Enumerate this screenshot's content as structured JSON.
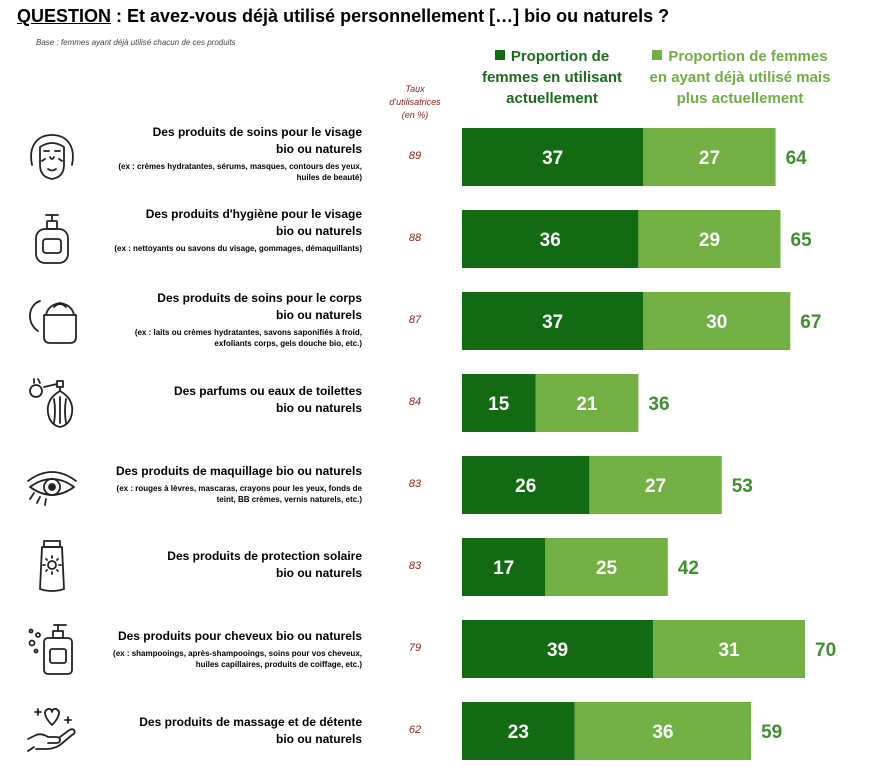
{
  "question": {
    "label": "QUESTION",
    "text": " : Et avez-vous déjà utilisé personnellement […] bio ou naturels ?"
  },
  "base_note": "Base : femmes ayant déjà utilisé chacun de ces produits",
  "rate_header": [
    "Taux",
    "d'utilisatrices",
    "(en %)"
  ],
  "legend": {
    "current": "Proportion de femmes en utilisant actuellement",
    "past": "Proportion de femmes en ayant déjà utilisé mais plus actuellement"
  },
  "colors": {
    "current": "#126a12",
    "past": "#72b043",
    "total_label": "#3f8f2f",
    "rate": "#8b1a1a"
  },
  "rows": [
    {
      "icon": "face-mask-icon",
      "title_lines": [
        "Des produits de soins pour le visage",
        "bio ou naturels"
      ],
      "detail_lines": [
        "(ex : crèmes hydratantes, sérums, masques,  contours des yeux,",
        "huiles de beauté)"
      ],
      "rate": "89"
    },
    {
      "icon": "soap-bottle-icon",
      "title_lines": [
        "Des produits d'hygiène pour le visage",
        "bio ou naturels"
      ],
      "detail_lines": [
        "(ex : nettoyants ou savons du visage, gommages, démaquillants)"
      ],
      "rate": "88"
    },
    {
      "icon": "cream-jar-icon",
      "title_lines": [
        "Des produits de soins pour le corps",
        "bio ou naturels"
      ],
      "detail_lines": [
        "(ex : laits ou crèmes hydratantes, savons saponifiés à froid,",
        "exfoliants corps, gels douche bio, etc.)"
      ],
      "rate": "87"
    },
    {
      "icon": "perfume-bottle-icon",
      "title_lines": [
        "Des parfums ou eaux de toilettes",
        "bio ou naturels"
      ],
      "detail_lines": [],
      "rate": "84"
    },
    {
      "icon": "eye-makeup-icon",
      "title_lines": [
        "Des produits de maquillage bio ou naturels"
      ],
      "detail_lines": [
        "(ex : rouges à lèvres, mascaras, crayons pour les yeux, fonds de",
        "teint, BB crèmes, vernis naturels, etc.)"
      ],
      "rate": "83"
    },
    {
      "icon": "sunscreen-tube-icon",
      "title_lines": [
        "Des produits de protection solaire",
        "bio ou naturels"
      ],
      "detail_lines": [],
      "rate": "83"
    },
    {
      "icon": "shampoo-bottle-icon",
      "title_lines": [
        "Des produits pour cheveux bio ou naturels"
      ],
      "detail_lines": [
        "(ex : shampooings, après-shampooings, soins pour vos cheveux,",
        "huiles capillaires, produits de coiffage, etc.)"
      ],
      "rate": "79"
    },
    {
      "icon": "massage-hand-icon",
      "title_lines": [
        "Des produits de massage et de détente",
        "bio ou naturels"
      ],
      "detail_lines": [],
      "rate": "62"
    }
  ],
  "chart_data": {
    "type": "bar",
    "orientation": "horizontal",
    "stacked": true,
    "categories": [
      "Des produits de soins pour le visage bio ou naturels",
      "Des produits d'hygiène pour le visage bio ou naturels",
      "Des produits de soins pour le corps bio ou naturels",
      "Des parfums ou eaux de toilettes bio ou naturels",
      "Des produits de maquillage bio ou naturels",
      "Des produits de protection solaire bio ou naturels",
      "Des produits pour cheveux bio ou naturels",
      "Des produits de massage et de détente bio ou naturels"
    ],
    "series": [
      {
        "name": "Proportion de femmes en utilisant actuellement",
        "values": [
          37,
          36,
          37,
          15,
          26,
          17,
          39,
          23
        ]
      },
      {
        "name": "Proportion de femmes en ayant déjà utilisé mais plus actuellement",
        "values": [
          27,
          29,
          30,
          21,
          27,
          25,
          31,
          36
        ]
      }
    ],
    "totals": [
      64,
      65,
      67,
      36,
      53,
      42,
      70,
      59
    ],
    "xlim": [
      0,
      100
    ],
    "legend": "top",
    "grid": false
  }
}
